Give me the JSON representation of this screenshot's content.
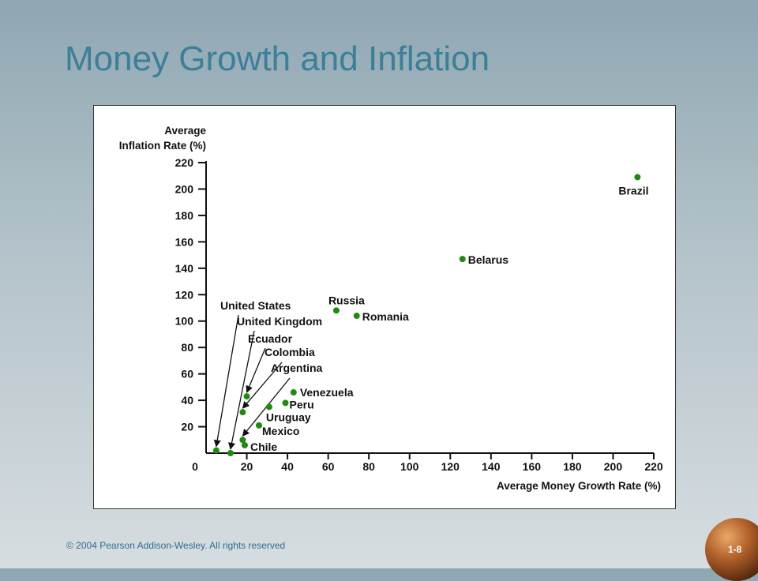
{
  "slide": {
    "title": "Money Growth and Inflation",
    "copyright": "© 2004 Pearson Addison-Wesley. All rights reserved",
    "page_number": "1-8"
  },
  "colors": {
    "title": "#3c7f99",
    "points": "#1f8a0f",
    "axis": "#111111"
  },
  "chart_data": {
    "type": "scatter",
    "title": "",
    "xlabel": "Average Money Growth Rate (%)",
    "ylabel_lines": [
      "Average",
      "Inflation Rate (%)"
    ],
    "xlim": [
      0,
      220
    ],
    "ylim": [
      0,
      220
    ],
    "x_ticks": [
      "0",
      "20",
      "40",
      "60",
      "80",
      "100",
      "120",
      "140",
      "160",
      "180",
      "200",
      "220"
    ],
    "y_ticks": [
      "20",
      "40",
      "60",
      "80",
      "100",
      "120",
      "140",
      "160",
      "180",
      "200",
      "220"
    ],
    "grid": false,
    "points": [
      {
        "label": "United States",
        "x": 5,
        "y": 2
      },
      {
        "label": "United Kingdom",
        "x": 12,
        "y": 0
      },
      {
        "label": "Ecuador",
        "x": 20,
        "y": 43
      },
      {
        "label": "Colombia",
        "x": 18,
        "y": 31
      },
      {
        "label": "Argentina",
        "x": 18,
        "y": 10
      },
      {
        "label": "Chile",
        "x": 19,
        "y": 6
      },
      {
        "label": "Mexico",
        "x": 26,
        "y": 21
      },
      {
        "label": "Uruguay",
        "x": 31,
        "y": 35
      },
      {
        "label": "Peru",
        "x": 39,
        "y": 38
      },
      {
        "label": "Venezuela",
        "x": 43,
        "y": 46
      },
      {
        "label": "Russia",
        "x": 64,
        "y": 108
      },
      {
        "label": "Romania",
        "x": 74,
        "y": 104
      },
      {
        "label": "Belarus",
        "x": 126,
        "y": 147
      },
      {
        "label": "Brazil",
        "x": 212,
        "y": 209
      }
    ]
  }
}
